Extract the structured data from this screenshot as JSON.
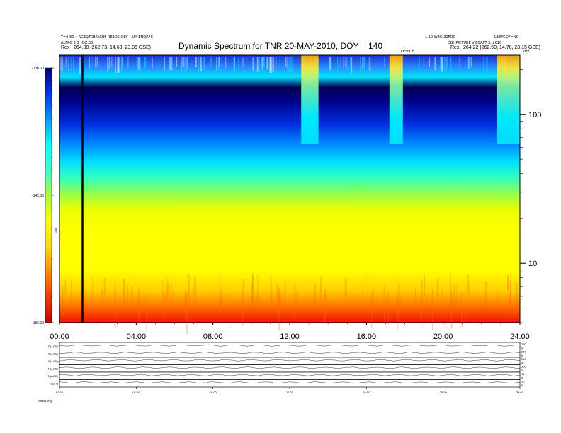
{
  "chart_data": {
    "type": "heatmap",
    "title": "Dynamic Spectrum for TNR 20-MAY-2010, DOY = 140",
    "header_left": {
      "line1": "T=0.30 • RGEQTCBFACBF REBOS OBY • UA ENQRFC",
      "line2": "ALFPG 3.3 •DZ.00",
      "line3_label": "Rex",
      "line3_value": "264.30 (262.73, 14.63, 23.05 GSE)"
    },
    "header_right": {
      "line1a": "1.10 WEG 21FOC",
      "line1b": "L3EFGOF=NO",
      "line2": "OBJ_PICTURE VIEGAFT 3, 2010",
      "line3_label": "Rex",
      "line3_value": "264.22 (262.50, 14.78, 23.15 GSE)"
    },
    "top_marker_label": "DEVICE",
    "right_axis_unit": "kHz",
    "colorbar": {
      "ticks": [
        "-130.00",
        "-142.50",
        "-155.00"
      ],
      "values": [
        -130.0,
        -142.5,
        -155.0
      ],
      "range": [
        -155.0,
        -130.0
      ],
      "label": "TNR",
      "colormap": [
        "#cc0000",
        "#ff3300",
        "#ff8800",
        "#ffdd00",
        "#ffff00",
        "#aaff33",
        "#33ffcc",
        "#00ffff",
        "#0099ff",
        "#0033ff",
        "#000080"
      ]
    },
    "x_axis": {
      "ticks": [
        "00:00",
        "04:00",
        "08:00",
        "12:00",
        "16:00",
        "20:00",
        "24:00"
      ],
      "hours": [
        0,
        4,
        8,
        12,
        16,
        20,
        24
      ],
      "range": [
        0,
        24
      ]
    },
    "y_axis": {
      "scale": "log",
      "ticks": [
        "100",
        "10"
      ],
      "values": [
        100,
        10
      ],
      "range": [
        4,
        250
      ]
    },
    "event_line_hour": 1.2,
    "bursts": [
      {
        "start": 12.6,
        "end": 13.5
      },
      {
        "start": 17.2,
        "end": 17.9
      },
      {
        "start": 22.8,
        "end": 24.0
      }
    ],
    "bottom_panels": {
      "labels": [
        "B(AGE)",
        "B(AGE)",
        "B(AGE)",
        "N(AGE)",
        "N(AGE)",
        "B(BT)"
      ],
      "right_ticks": [
        [
          "250",
          "0"
        ],
        [
          "250",
          "0"
        ],
        [
          "250",
          "0"
        ],
        [
          "500",
          "0"
        ],
        [
          "10",
          "0"
        ],
        [
          "10",
          "0"
        ]
      ],
      "x_ticks": [
        "00:00",
        "04:00",
        "08:00",
        "12:00",
        "16:00",
        "20:00",
        "24:00"
      ],
      "footer": "Status   chg"
    }
  }
}
